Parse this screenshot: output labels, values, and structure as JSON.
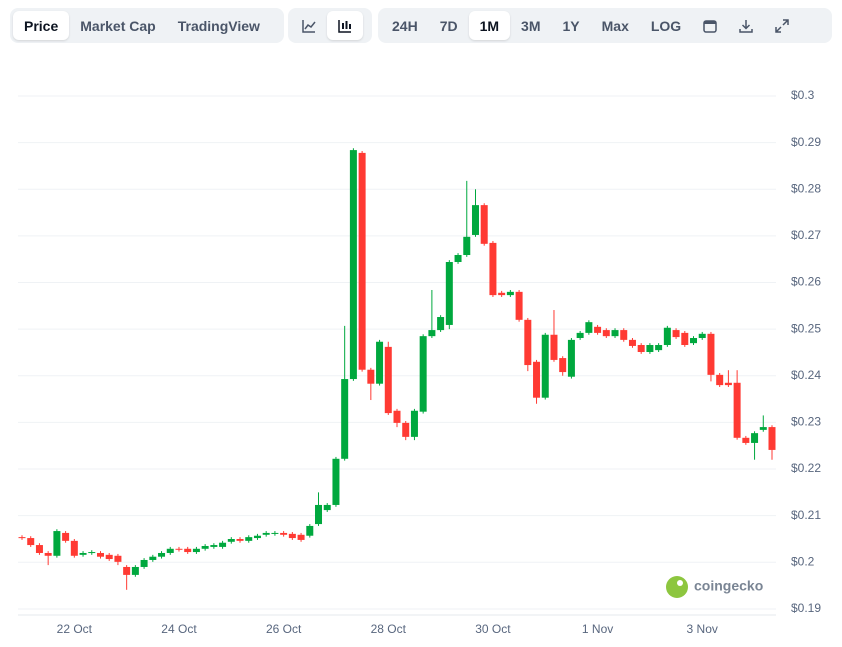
{
  "toolbar": {
    "views": [
      "Price",
      "Market Cap",
      "TradingView"
    ],
    "active_view": "Price",
    "ranges": [
      "24H",
      "7D",
      "1M",
      "3M",
      "1Y",
      "Max",
      "LOG"
    ],
    "active_range": "1M"
  },
  "watermark": "coingecko",
  "chart_data": {
    "type": "candlestick",
    "categories": [
      null,
      null,
      null,
      null,
      null,
      null,
      "22 Oct",
      null,
      null,
      null,
      null,
      null,
      null,
      null,
      null,
      null,
      null,
      null,
      "24 Oct",
      null,
      null,
      null,
      null,
      null,
      null,
      null,
      null,
      null,
      null,
      null,
      "26 Oct",
      null,
      null,
      null,
      null,
      null,
      null,
      null,
      null,
      null,
      null,
      null,
      "28 Oct",
      null,
      null,
      null,
      null,
      null,
      null,
      null,
      null,
      null,
      null,
      null,
      "30 Oct",
      null,
      null,
      null,
      null,
      null,
      null,
      null,
      null,
      null,
      null,
      null,
      "1 Nov",
      null,
      null,
      null,
      null,
      null,
      null,
      null,
      null,
      null,
      null,
      null,
      "3 Nov",
      null,
      null,
      null,
      null,
      null,
      null,
      null,
      null
    ],
    "series": [
      {
        "up_color": "#00a83e",
        "down_color": "#ff3a33",
        "open": [
          0.2054,
          0.2052,
          0.2037,
          0.202,
          0.2014,
          0.2063,
          0.2046,
          0.2016,
          0.202,
          0.202,
          0.2016,
          0.2014,
          0.199,
          0.1973,
          0.199,
          0.2005,
          0.2012,
          0.202,
          0.2029,
          0.2029,
          0.2022,
          0.2029,
          0.2033,
          0.2033,
          0.2044,
          0.205,
          0.2046,
          0.2052,
          0.2059,
          0.2061,
          0.2063,
          0.2061,
          0.2059,
          0.2057,
          0.2082,
          0.2112,
          0.2123,
          0.2222,
          0.2393,
          0.2878,
          0.2413,
          0.2383,
          0.2462,
          0.2325,
          0.2299,
          0.2269,
          0.2323,
          0.2485,
          0.2498,
          0.2509,
          0.2644,
          0.2659,
          0.2702,
          0.2766,
          0.2685,
          0.2578,
          0.2573,
          0.258,
          0.252,
          0.243,
          0.2353,
          0.2488,
          0.2438,
          0.2398,
          0.2481,
          0.2492,
          0.2505,
          0.2498,
          0.2485,
          0.2498,
          0.2477,
          0.2466,
          0.2451,
          0.2455,
          0.2466,
          0.2498,
          0.2492,
          0.247,
          0.2481,
          0.249,
          0.2402,
          0.2385,
          0.2385,
          0.2267,
          0.2256,
          0.2284,
          0.229
        ],
        "high": [
          0.2058,
          0.2056,
          0.2041,
          0.2024,
          0.2071,
          0.2067,
          0.205,
          0.2024,
          0.2026,
          0.2024,
          0.202,
          0.2018,
          0.1994,
          0.1994,
          0.2009,
          0.2016,
          0.2024,
          0.2033,
          0.2033,
          0.2033,
          0.2033,
          0.2039,
          0.2041,
          0.2046,
          0.2054,
          0.2054,
          0.2058,
          0.2061,
          0.2067,
          0.2067,
          0.2067,
          0.2065,
          0.2063,
          0.2082,
          0.215,
          0.2127,
          0.2226,
          0.2507,
          0.2888,
          0.2882,
          0.2417,
          0.2477,
          0.2473,
          0.2329,
          0.2303,
          0.2329,
          0.2489,
          0.2584,
          0.253,
          0.2648,
          0.2663,
          0.2818,
          0.28,
          0.277,
          0.2689,
          0.2582,
          0.2584,
          0.2584,
          0.2524,
          0.2434,
          0.2492,
          0.2541,
          0.2442,
          0.2481,
          0.2496,
          0.2519,
          0.2509,
          0.2502,
          0.2502,
          0.2502,
          0.2481,
          0.247,
          0.247,
          0.247,
          0.2507,
          0.2502,
          0.2496,
          0.2485,
          0.2494,
          0.2494,
          0.2406,
          0.2412,
          0.2412,
          0.2271,
          0.2281,
          0.2315,
          0.2294
        ],
        "low": [
          0.2048,
          0.2033,
          0.2016,
          0.1994,
          0.201,
          0.2042,
          0.201,
          0.2012,
          0.2016,
          0.2008,
          0.2003,
          0.1994,
          0.1941,
          0.1969,
          0.1986,
          0.2001,
          0.2008,
          0.2016,
          0.2023,
          0.2018,
          0.2018,
          0.2025,
          0.2029,
          0.2029,
          0.204,
          0.2042,
          0.2042,
          0.2048,
          0.2055,
          0.2057,
          0.2055,
          0.2048,
          0.2044,
          0.2053,
          0.2078,
          0.2108,
          0.2119,
          0.2218,
          0.2389,
          0.2409,
          0.2348,
          0.2379,
          0.2316,
          0.229,
          0.2262,
          0.2262,
          0.2319,
          0.2481,
          0.2494,
          0.25,
          0.264,
          0.2655,
          0.2698,
          0.2679,
          0.2569,
          0.2569,
          0.2569,
          0.2516,
          0.241,
          0.234,
          0.2349,
          0.243,
          0.24,
          0.2394,
          0.2477,
          0.2488,
          0.2488,
          0.2481,
          0.2481,
          0.2473,
          0.246,
          0.2447,
          0.2447,
          0.2451,
          0.2462,
          0.2479,
          0.2462,
          0.2466,
          0.2477,
          0.2388,
          0.2376,
          0.2376,
          0.2263,
          0.2252,
          0.222,
          0.228,
          0.222
        ],
        "close": [
          0.2052,
          0.2037,
          0.202,
          0.2014,
          0.2067,
          0.2046,
          0.2014,
          0.202,
          0.2022,
          0.2012,
          0.2007,
          0.2001,
          0.1973,
          0.199,
          0.2005,
          0.2012,
          0.202,
          0.2029,
          0.2027,
          0.2022,
          0.2029,
          0.2035,
          0.2037,
          0.2042,
          0.205,
          0.2046,
          0.2054,
          0.2057,
          0.2063,
          0.2063,
          0.2059,
          0.2052,
          0.2048,
          0.2078,
          0.2123,
          0.2123,
          0.2222,
          0.2393,
          0.2884,
          0.2413,
          0.2383,
          0.2473,
          0.232,
          0.2299,
          0.2269,
          0.2325,
          0.2485,
          0.2498,
          0.2526,
          0.2644,
          0.2659,
          0.2698,
          0.2766,
          0.2683,
          0.2573,
          0.2573,
          0.258,
          0.252,
          0.2423,
          0.2353,
          0.2488,
          0.2434,
          0.2408,
          0.2477,
          0.2492,
          0.2515,
          0.2492,
          0.2485,
          0.2498,
          0.2477,
          0.2464,
          0.2451,
          0.2466,
          0.2466,
          0.2503,
          0.2483,
          0.2466,
          0.2481,
          0.249,
          0.2402,
          0.238,
          0.238,
          0.2267,
          0.2256,
          0.2277,
          0.229,
          0.2241
        ]
      }
    ],
    "ylim": [
      0.1887,
      0.3
    ],
    "yticks": [
      {
        "value": 0.19,
        "label": "$0.19"
      },
      {
        "value": 0.2,
        "label": "$0.2"
      },
      {
        "value": 0.21,
        "label": "$0.21"
      },
      {
        "value": 0.22,
        "label": "$0.22"
      },
      {
        "value": 0.23,
        "label": "$0.23"
      },
      {
        "value": 0.24,
        "label": "$0.24"
      },
      {
        "value": 0.25,
        "label": "$0.25"
      },
      {
        "value": 0.26,
        "label": "$0.26"
      },
      {
        "value": 0.27,
        "label": "$0.27"
      },
      {
        "value": 0.28,
        "label": "$0.28"
      },
      {
        "value": 0.29,
        "label": "$0.29"
      },
      {
        "value": 0.3,
        "label": "$0.3"
      }
    ],
    "grid": true
  }
}
